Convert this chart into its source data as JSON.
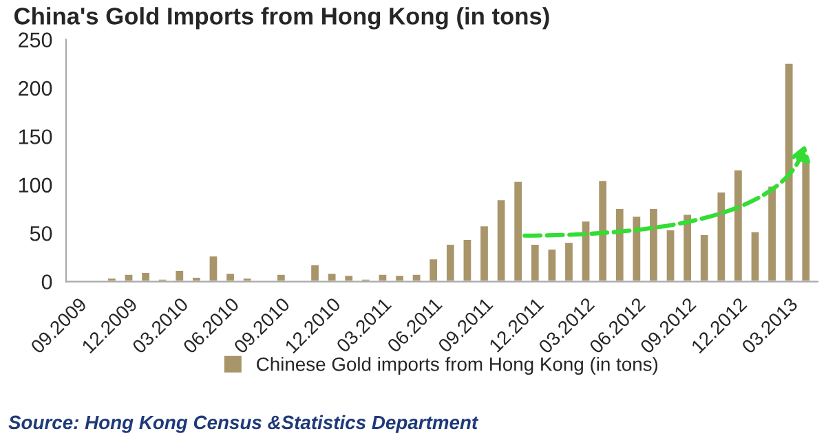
{
  "chart_data": {
    "type": "bar",
    "title": "China's Gold Imports from Hong Kong (in tons)",
    "categories": [
      "09.2009",
      null,
      null,
      "12.2009",
      null,
      null,
      "03.2010",
      null,
      null,
      "06.2010",
      null,
      null,
      "09.2010",
      null,
      null,
      "12.2010",
      null,
      null,
      "03.2011",
      null,
      null,
      "06.2011",
      null,
      null,
      "09.2011",
      null,
      null,
      "12.2011",
      null,
      null,
      "03.2012",
      null,
      null,
      "06.2012",
      null,
      null,
      "09.2012",
      null,
      null,
      "12.2012",
      null,
      null,
      "03.2013",
      null
    ],
    "series": [
      {
        "name": "Chinese Gold imports from Hong Kong (in tons)",
        "color": "#a8956a",
        "values": [
          1,
          1,
          4,
          8,
          10,
          3,
          12,
          5,
          27,
          9,
          4,
          1,
          8,
          1,
          18,
          9,
          7,
          3,
          8,
          7,
          8,
          24,
          39,
          44,
          58,
          85,
          104,
          39,
          34,
          41,
          63,
          105,
          76,
          68,
          76,
          54,
          70,
          49,
          93,
          116,
          52,
          99,
          226,
          128
        ]
      }
    ],
    "ylim": [
      0,
      250
    ],
    "yticks": [
      0,
      50,
      100,
      150,
      200,
      250
    ],
    "grid": false,
    "legend": "bottom",
    "annotations": [
      "Source: Hong Kong Census &Statistics Department"
    ]
  }
}
